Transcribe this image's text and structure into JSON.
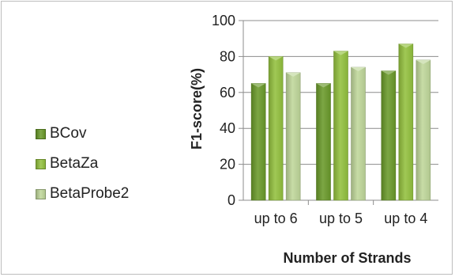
{
  "chart_data": {
    "type": "bar",
    "title": "",
    "xlabel": "Number of Strands",
    "ylabel": "F1-score(%)",
    "categories": [
      "up to 6",
      "up to 5",
      "up to 4"
    ],
    "series": [
      {
        "name": "BCov",
        "values": [
          65,
          65,
          72
        ],
        "color": "#6a9a2a"
      },
      {
        "name": "BetaZa",
        "values": [
          80,
          83,
          87
        ],
        "color": "#93c13e"
      },
      {
        "name": "BetaProbe2",
        "values": [
          71,
          74,
          78
        ],
        "color": "#bfd79a"
      }
    ],
    "ylim": [
      0,
      100
    ],
    "yticks": [
      0,
      20,
      40,
      60,
      80,
      100
    ],
    "grid": true,
    "legend_position": "left"
  }
}
